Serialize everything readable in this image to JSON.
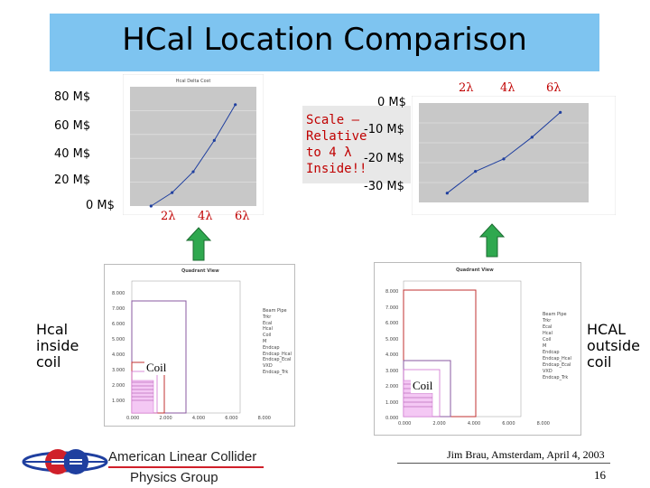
{
  "slide": {
    "title": "HCal Location Comparison",
    "left_caption": [
      "Hcal",
      "inside",
      "coil"
    ],
    "right_caption": [
      "HCAL",
      "outside",
      "coil"
    ],
    "scale_note": [
      "Scale –",
      "Relative",
      "to 4 λ",
      "Inside!!"
    ],
    "coil_label": "Coil",
    "author_line": "Jim Brau, Amsterdam, April 4, 2003",
    "page_number": "16",
    "logo_text_line1": "American Linear Collider",
    "logo_text_line2": "Physics Group",
    "banner_color": "#7ec4f0"
  },
  "chart_data": [
    {
      "type": "line",
      "title": "Hcal Delta Cost",
      "y_tick_labels": [
        "80 M$",
        "60 M$",
        "40 M$",
        "20 M$",
        "0 M$"
      ],
      "x_tick_labels": [
        "2λ",
        "4λ",
        "6λ"
      ],
      "x": [
        2,
        3,
        4,
        5,
        6
      ],
      "values": [
        0,
        9,
        23,
        44,
        68
      ],
      "xlim": [
        1,
        7
      ],
      "ylim": [
        0,
        80
      ],
      "grid": true
    },
    {
      "type": "line",
      "title": "",
      "y_tick_labels": [
        "0 M$",
        "-10 M$",
        "-20 M$",
        "-30 M$"
      ],
      "x_tick_labels": [
        "2λ",
        "4λ",
        "6λ"
      ],
      "x": [
        2,
        3,
        4,
        5,
        6
      ],
      "values": [
        -27,
        -20,
        -16,
        -9,
        -1
      ],
      "xlim": [
        1,
        7
      ],
      "ylim": [
        -30,
        2
      ],
      "grid": true
    }
  ],
  "quadrant_views": [
    {
      "title": "Quadrant View",
      "y_ticks": [
        "8.000",
        "7.000",
        "6.000",
        "5.000",
        "4.000",
        "3.000",
        "2.000",
        "1.000",
        "0.000"
      ],
      "x_ticks": [
        "0.000",
        "2.000",
        "4.000",
        "6.000",
        "8.000"
      ],
      "legend": [
        "Beam Pipe",
        "Trkr",
        "Ecal",
        "Hcal",
        "Coil",
        "M",
        "Endcap",
        "Endcap_Hcal",
        "Endcap_Ecal",
        "VXD",
        "Endcap_Trk"
      ]
    },
    {
      "title": "Quadrant View",
      "y_ticks": [
        "8.000",
        "7.000",
        "6.000",
        "5.000",
        "4.000",
        "3.000",
        "2.000",
        "1.000",
        "0.000"
      ],
      "x_ticks": [
        "0.000",
        "2.000",
        "4.000",
        "6.000",
        "8.000"
      ],
      "legend": [
        "Beam Pipe",
        "Trkr",
        "Ecal",
        "Hcal",
        "Coil",
        "M",
        "Endcap",
        "Endcap_Hcal",
        "Endcap_Ecal",
        "VXD",
        "Endcap_Trk"
      ]
    }
  ],
  "colors": {
    "arrow_green": "#2fa84f",
    "red_text": "#c00000",
    "logo_blue": "#1f3f9f",
    "logo_red": "#d0202a"
  }
}
